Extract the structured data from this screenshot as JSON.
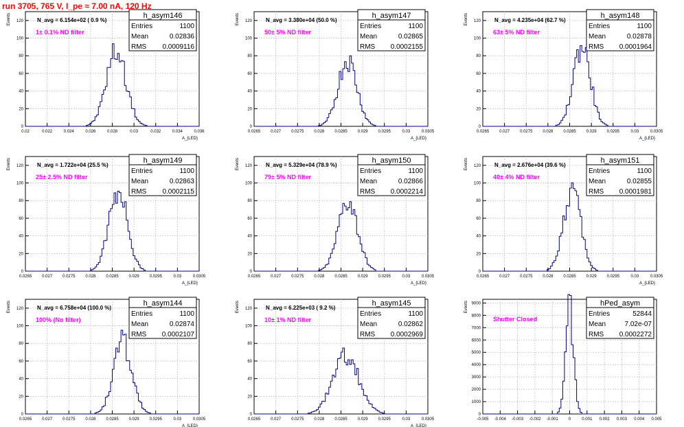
{
  "title": "run 3705,   765 V, I_pe ≈ 7.00 nA, 120 Hz",
  "chart_data": [
    {
      "type": "histogram",
      "name": "h_asym146",
      "nAvg": "N_avg = 6.154e+02 ( 0.9 %)",
      "filter": "1± 0.1% ND filter",
      "stats": {
        "entries": "1100",
        "mean": "0.02836",
        "rms": "0.0009116"
      },
      "xlim": [
        0.02,
        0.036
      ],
      "ylim": [
        0,
        130
      ],
      "xticks": [
        "0.02",
        "0.022",
        "0.024",
        "0.026",
        "0.028",
        "0.03",
        "0.032",
        "0.034",
        "0.036"
      ],
      "yticks": [
        "0",
        "20",
        "40",
        "60",
        "80",
        "100",
        "120"
      ],
      "ylabel": "Events",
      "xlabel": "A_{LED}",
      "mean": 0.02836,
      "sigma": 0.0009116,
      "peak": 90
    },
    {
      "type": "histogram",
      "name": "h_asym147",
      "nAvg": "N_avg = 3.380e+04 (50.0 %)",
      "filter": "50± 5% ND filter",
      "stats": {
        "entries": "1100",
        "mean": "0.02865",
        "rms": "0.0002155"
      },
      "xlim": [
        0.0265,
        0.0305
      ],
      "ylim": [
        0,
        130
      ],
      "xticks": [
        "0.0265",
        "0.027",
        "0.0275",
        "0.028",
        "0.0285",
        "0.029",
        "0.0295",
        "0.03",
        "0.0305"
      ],
      "yticks": [
        "0",
        "20",
        "40",
        "60",
        "80",
        "100",
        "120"
      ],
      "ylabel": "Events",
      "xlabel": "A_{LED}",
      "mean": 0.02865,
      "sigma": 0.0002155,
      "peak": 80
    },
    {
      "type": "histogram",
      "name": "h_asym148",
      "nAvg": "N_avg = 4.235e+04 (62.7 %)",
      "filter": "63± 5% ND filter",
      "stats": {
        "entries": "1100",
        "mean": "0.02878",
        "rms": "0.0001964"
      },
      "xlim": [
        0.0265,
        0.0305
      ],
      "ylim": [
        0,
        130
      ],
      "xticks": [
        "0.0265",
        "0.027",
        "0.0275",
        "0.028",
        "0.0285",
        "0.029",
        "0.0295",
        "0.03",
        "0.0305"
      ],
      "yticks": [
        "0",
        "20",
        "40",
        "60",
        "80",
        "100",
        "120"
      ],
      "ylabel": "Events",
      "xlabel": "A_{LED}",
      "mean": 0.02878,
      "sigma": 0.0001964,
      "peak": 96
    },
    {
      "type": "histogram",
      "name": "h_asym149",
      "nAvg": "N_avg = 1.722e+04 (25.5 %)",
      "filter": "25± 2.5% ND filter",
      "stats": {
        "entries": "1100",
        "mean": "0.02863",
        "rms": "0.0002115"
      },
      "xlim": [
        0.0265,
        0.0305
      ],
      "ylim": [
        0,
        130
      ],
      "xticks": [
        "0.0265",
        "0.027",
        "0.0275",
        "0.028",
        "0.0285",
        "0.029",
        "0.0295",
        "0.03",
        "0.0305"
      ],
      "yticks": [
        "0",
        "20",
        "40",
        "60",
        "80",
        "100",
        "120"
      ],
      "ylabel": "Events",
      "xlabel": "A_{LED}",
      "mean": 0.02863,
      "sigma": 0.0002115,
      "peak": 98
    },
    {
      "type": "histogram",
      "name": "h_asym150",
      "nAvg": "N_avg = 5.329e+04 (78.9 %)",
      "filter": "79± 5% ND filter",
      "stats": {
        "entries": "1100",
        "mean": "0.02866",
        "rms": "0.0002214"
      },
      "xlim": [
        0.0265,
        0.0305
      ],
      "ylim": [
        0,
        130
      ],
      "xticks": [
        "0.0265",
        "0.027",
        "0.0275",
        "0.028",
        "0.0285",
        "0.029",
        "0.0295",
        "0.03",
        "0.0305"
      ],
      "yticks": [
        "0",
        "20",
        "40",
        "60",
        "80",
        "100",
        "120"
      ],
      "ylabel": "Events",
      "xlabel": "A_{LED}",
      "mean": 0.02866,
      "sigma": 0.0002214,
      "peak": 86
    },
    {
      "type": "histogram",
      "name": "h_asym151",
      "nAvg": "N_avg = 2.676e+04 (39.6 %)",
      "filter": "40± 4% ND filter",
      "stats": {
        "entries": "1100",
        "mean": "0.02855",
        "rms": "0.0001981"
      },
      "xlim": [
        0.0265,
        0.0305
      ],
      "ylim": [
        0,
        130
      ],
      "xticks": [
        "0.0265",
        "0.027",
        "0.0275",
        "0.028",
        "0.0285",
        "0.029",
        "0.0295",
        "0.03",
        "0.0305"
      ],
      "yticks": [
        "0",
        "20",
        "40",
        "60",
        "80",
        "100",
        "120"
      ],
      "ylabel": "Events",
      "xlabel": "A_{LED}",
      "mean": 0.02855,
      "sigma": 0.0001981,
      "peak": 98
    },
    {
      "type": "histogram",
      "name": "h_asym144",
      "nAvg": "N_avg = 6.758e+04 (100.0 %)",
      "filter": "100% (No filter)",
      "stats": {
        "entries": "1100",
        "mean": "0.02874",
        "rms": "0.0002107"
      },
      "xlim": [
        0.0265,
        0.0305
      ],
      "ylim": [
        0,
        130
      ],
      "xticks": [
        "0.0265",
        "0.027",
        "0.0275",
        "0.028",
        "0.0285",
        "0.029",
        "0.0295",
        "0.03",
        "0.0305"
      ],
      "yticks": [
        "0",
        "20",
        "40",
        "60",
        "80",
        "100",
        "120"
      ],
      "ylabel": "Events",
      "xlabel": "A_{LED}",
      "mean": 0.02874,
      "sigma": 0.0002107,
      "peak": 86
    },
    {
      "type": "histogram",
      "name": "h_asym145",
      "nAvg": "N_avg = 6.225e+03 ( 9.2 %)",
      "filter": "10± 1% ND filter",
      "stats": {
        "entries": "1100",
        "mean": "0.02862",
        "rms": "0.0002969"
      },
      "xlim": [
        0.0265,
        0.0305
      ],
      "ylim": [
        0,
        130
      ],
      "xticks": [
        "0.0265",
        "0.027",
        "0.0275",
        "0.028",
        "0.0285",
        "0.029",
        "0.0295",
        "0.03",
        "0.0305"
      ],
      "yticks": [
        "0",
        "20",
        "40",
        "60",
        "80",
        "100",
        "120"
      ],
      "ylabel": "Events",
      "xlabel": "A_{LED}",
      "mean": 0.02862,
      "sigma": 0.0002969,
      "peak": 70
    },
    {
      "type": "histogram",
      "name": "hPed_asym",
      "nAvg": "",
      "filter": "Shutter Closed",
      "stats": {
        "entries": "52844",
        "mean": "7.02e-07",
        "rms": "0.0002272"
      },
      "xlim": [
        -0.005,
        0.005
      ],
      "ylim": [
        0,
        9300
      ],
      "xticks": [
        "-0.005",
        "-0.004",
        "-0.003",
        "-0.002",
        "-0.001",
        "0",
        "0.001",
        "0.002",
        "0.003",
        "0.004",
        "0.005"
      ],
      "yticks": [
        "0",
        "1000",
        "2000",
        "3000",
        "4000",
        "5000",
        "6000",
        "7000",
        "8000",
        "9000"
      ],
      "ylabel": "Events",
      "xlabel": "",
      "mean": 7e-07,
      "sigma": 0.0002272,
      "peak": 8900
    }
  ],
  "labels": {
    "entries": "Entries",
    "mean": "Mean",
    "rms": "RMS"
  },
  "colors": {
    "title": "#ff0000",
    "filter": "#ff00ff",
    "hist": "#000080",
    "grid": "#b4b4b4",
    "axis": "#000000"
  }
}
